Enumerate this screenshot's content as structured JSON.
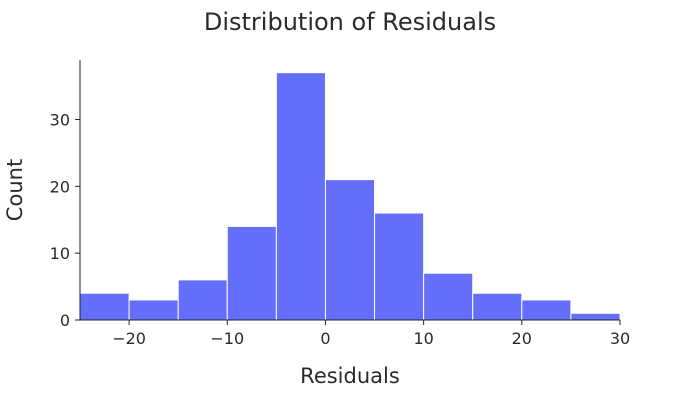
{
  "chart_data": {
    "type": "bar",
    "title": "Distribution of Residuals",
    "xlabel": "Residuals",
    "ylabel": "Count",
    "bins": [
      {
        "start": -25,
        "end": -20,
        "count": 4
      },
      {
        "start": -20,
        "end": -15,
        "count": 3
      },
      {
        "start": -15,
        "end": -10,
        "count": 6
      },
      {
        "start": -10,
        "end": -5,
        "count": 14
      },
      {
        "start": -5,
        "end": 0,
        "count": 37
      },
      {
        "start": 0,
        "end": 5,
        "count": 21
      },
      {
        "start": 5,
        "end": 10,
        "count": 16
      },
      {
        "start": 10,
        "end": 15,
        "count": 7
      },
      {
        "start": 15,
        "end": 20,
        "count": 4
      },
      {
        "start": 20,
        "end": 25,
        "count": 3
      },
      {
        "start": 25,
        "end": 30,
        "count": 1
      }
    ],
    "xlim": [
      -25,
      30
    ],
    "ylim": [
      0,
      38.9
    ],
    "x_ticks": [
      -20,
      -10,
      0,
      10,
      20,
      30
    ],
    "x_tick_labels": [
      "−20",
      "−10",
      "0",
      "10",
      "20",
      "30"
    ],
    "y_ticks": [
      0,
      10,
      20,
      30
    ],
    "y_tick_labels": [
      "0",
      "10",
      "20",
      "30"
    ],
    "bar_color": "#636efa",
    "grid": false,
    "legend": "none"
  }
}
